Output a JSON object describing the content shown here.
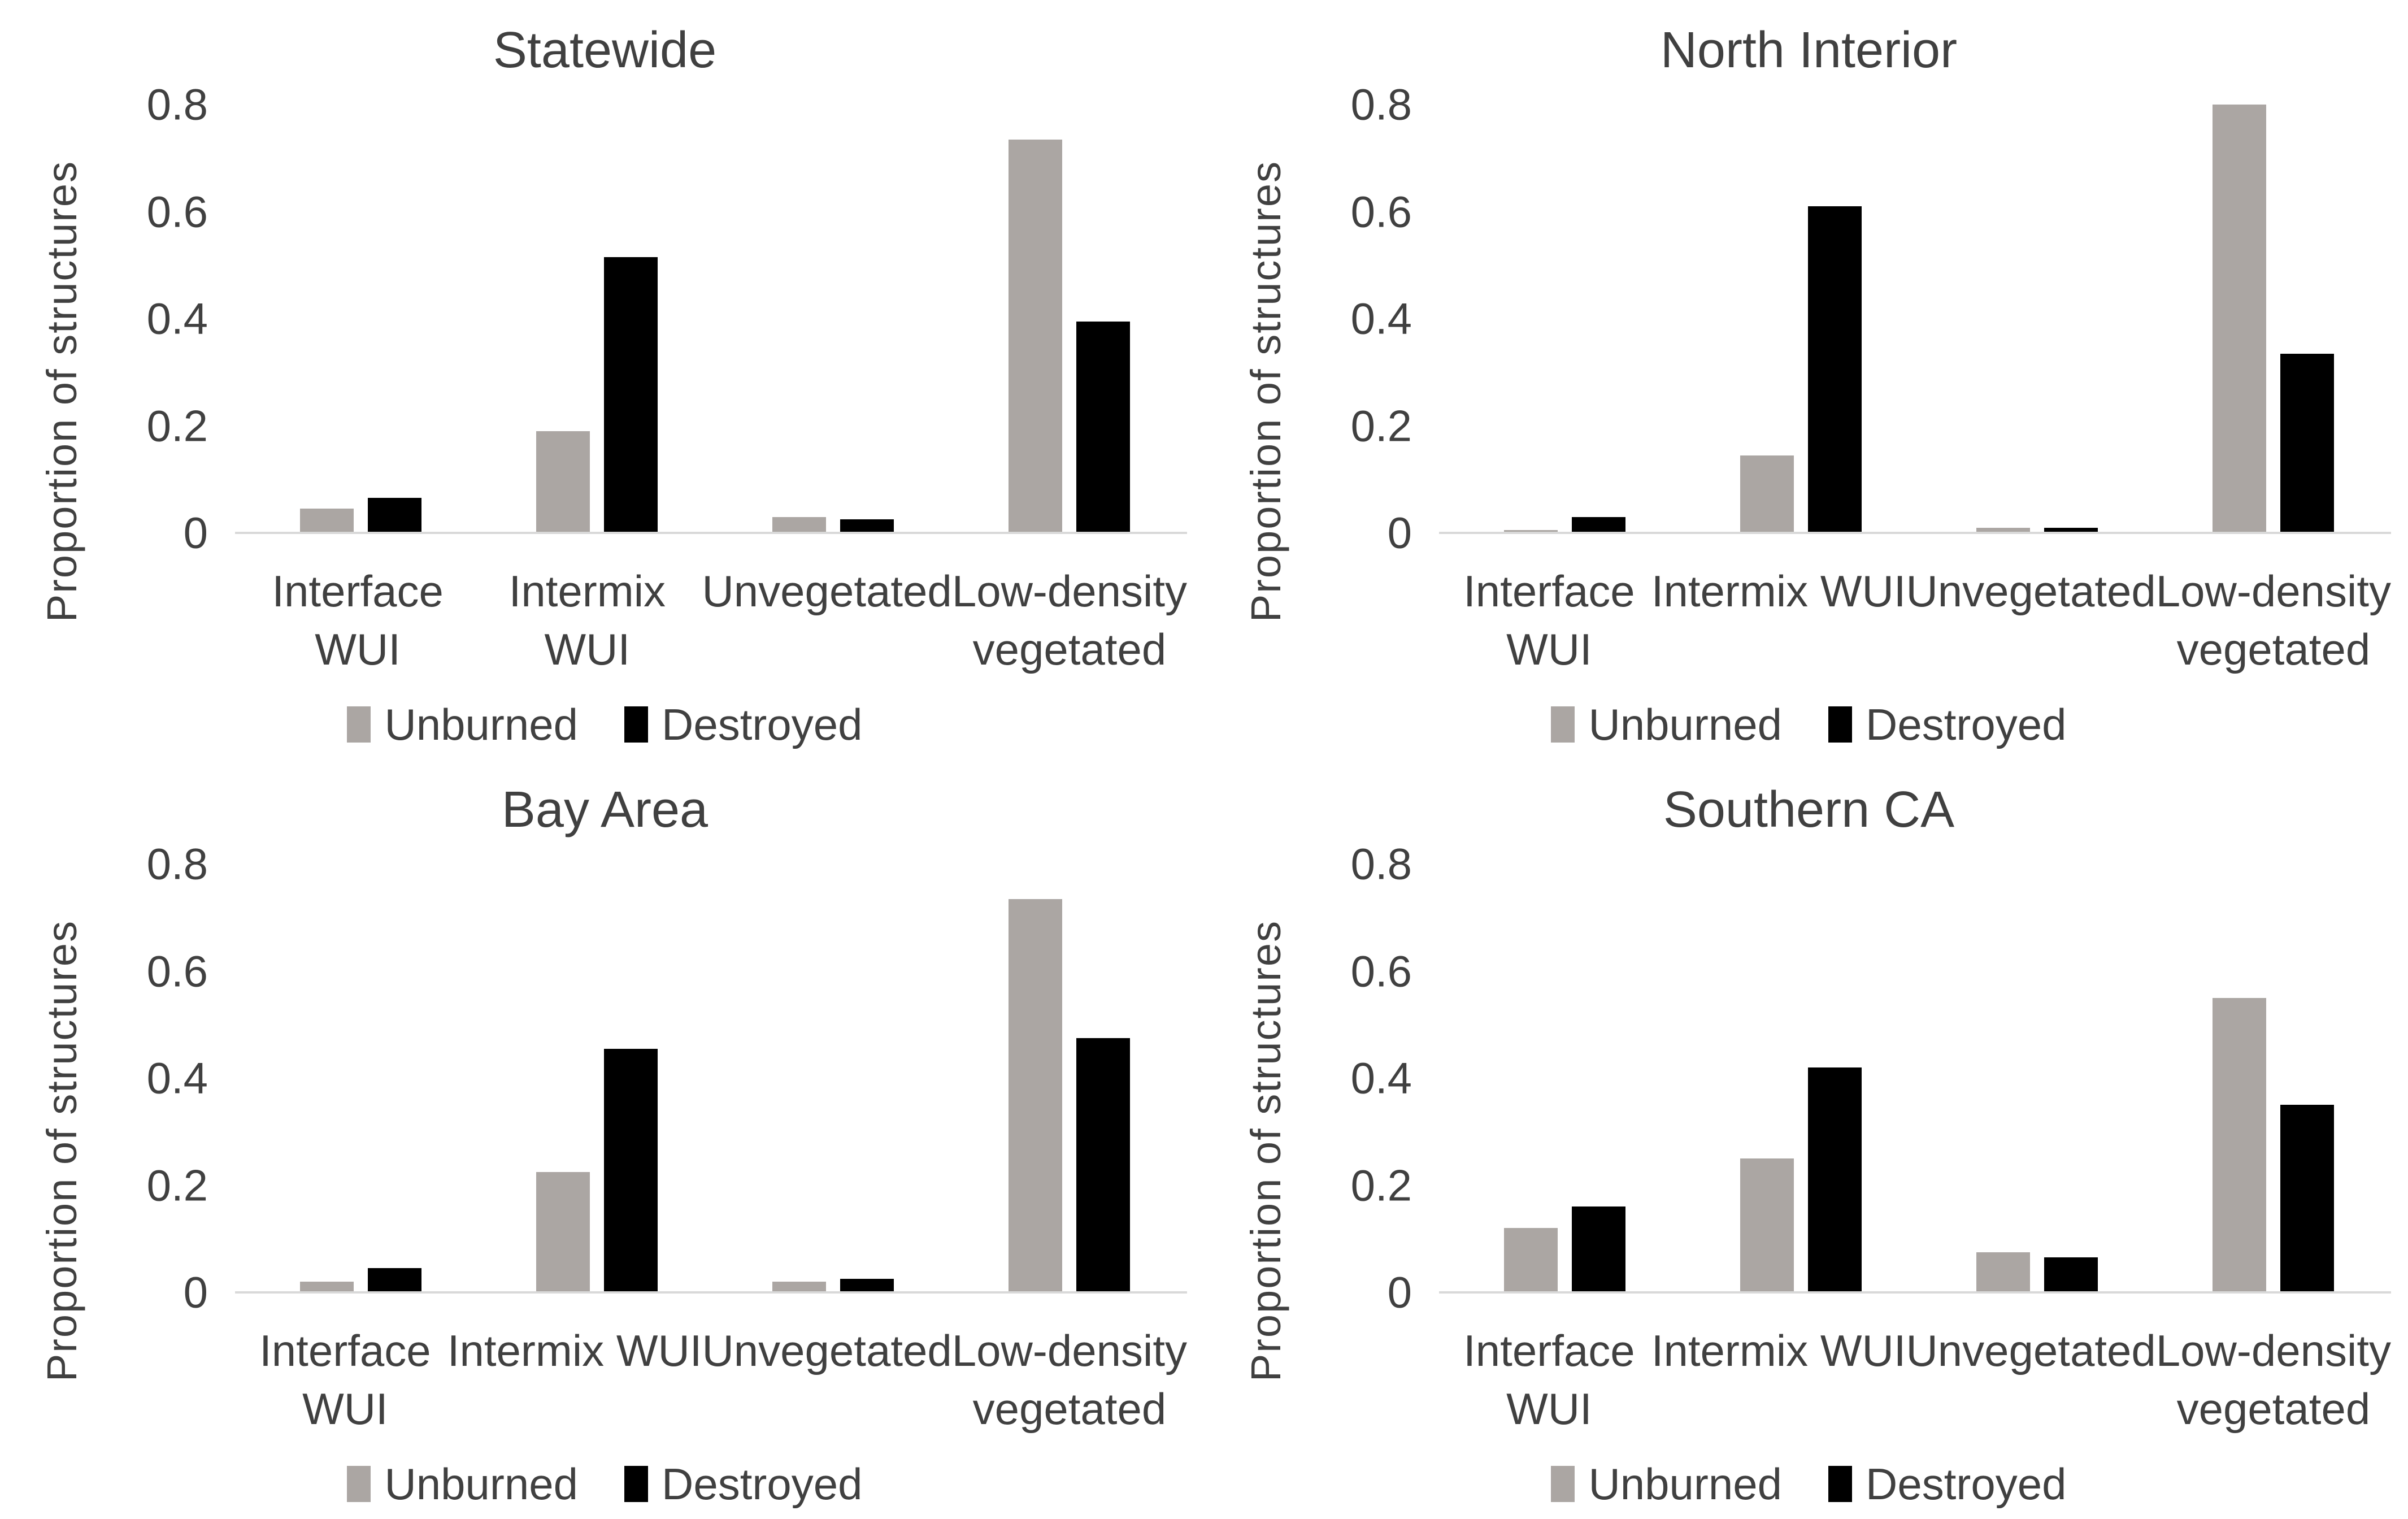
{
  "colors": {
    "unburned": "#aba6a3",
    "destroyed": "#000000",
    "text": "#404040",
    "axis_line": "#d9d9d9",
    "background": "#ffffff"
  },
  "y_axis": {
    "label": "Proportion of structures",
    "tick_labels": [
      "0.8",
      "0.6",
      "0.4",
      "0.2",
      "0"
    ]
  },
  "legend": {
    "items": [
      {
        "label": "Unburned",
        "color_key": "unburned"
      },
      {
        "label": "Destroyed",
        "color_key": "destroyed"
      }
    ]
  },
  "chart_data": [
    {
      "type": "bar",
      "title": "Statewide",
      "ylabel": "Proportion of structures",
      "xlabel": "",
      "ylim": [
        0,
        0.8
      ],
      "yticks": [
        0.8,
        0.6,
        0.4,
        0.2,
        0
      ],
      "grid": false,
      "legend_position": "bottom",
      "categories": [
        "Interface WUI",
        "Intermix WUI",
        "Unvegetated",
        "Low-density vegetated"
      ],
      "category_label_lines": [
        [
          "Interface",
          "WUI"
        ],
        [
          "Intermix",
          "WUI"
        ],
        [
          "Unvegetated"
        ],
        [
          "Low-density",
          "vegetated"
        ]
      ],
      "series": [
        {
          "name": "Unburned",
          "values": [
            0.045,
            0.19,
            0.03,
            0.735
          ]
        },
        {
          "name": "Destroyed",
          "values": [
            0.065,
            0.515,
            0.025,
            0.395
          ]
        }
      ]
    },
    {
      "type": "bar",
      "title": "North Interior",
      "ylabel": "Proportion of structures",
      "xlabel": "",
      "ylim": [
        0,
        0.8
      ],
      "yticks": [
        0.8,
        0.6,
        0.4,
        0.2,
        0
      ],
      "grid": false,
      "legend_position": "bottom",
      "categories": [
        "Interface WUI",
        "Intermix WUI",
        "Unvegetated",
        "Low-density vegetated"
      ],
      "category_label_lines": [
        [
          "Interface",
          "WUI"
        ],
        [
          "Intermix WUI"
        ],
        [
          "Unvegetated"
        ],
        [
          "Low-density",
          "vegetated"
        ]
      ],
      "series": [
        {
          "name": "Unburned",
          "values": [
            0.005,
            0.145,
            0.01,
            0.8
          ]
        },
        {
          "name": "Destroyed",
          "values": [
            0.03,
            0.61,
            0.01,
            0.335
          ]
        }
      ]
    },
    {
      "type": "bar",
      "title": "Bay Area",
      "ylabel": "Proportion of structures",
      "xlabel": "",
      "ylim": [
        0,
        0.8
      ],
      "yticks": [
        0.8,
        0.6,
        0.4,
        0.2,
        0
      ],
      "grid": false,
      "legend_position": "bottom",
      "categories": [
        "Interface WUI",
        "Intermix WUI",
        "Unvegetated",
        "Low-density vegetated"
      ],
      "category_label_lines": [
        [
          "Interface",
          "WUI"
        ],
        [
          "Intermix WUI"
        ],
        [
          "Unvegetated"
        ],
        [
          "Low-density",
          "vegetated"
        ]
      ],
      "series": [
        {
          "name": "Unburned",
          "values": [
            0.02,
            0.225,
            0.02,
            0.735
          ]
        },
        {
          "name": "Destroyed",
          "values": [
            0.045,
            0.455,
            0.025,
            0.475
          ]
        }
      ]
    },
    {
      "type": "bar",
      "title": "Southern CA",
      "ylabel": "Proportion of structures",
      "xlabel": "",
      "ylim": [
        0,
        0.8
      ],
      "yticks": [
        0.8,
        0.6,
        0.4,
        0.2,
        0
      ],
      "grid": false,
      "legend_position": "bottom",
      "categories": [
        "Interface WUI",
        "Intermix WUI",
        "Unvegetated",
        "Low-density vegetated"
      ],
      "category_label_lines": [
        [
          "Interface",
          "WUI"
        ],
        [
          "Intermix WUI"
        ],
        [
          "Unvegetated"
        ],
        [
          "Low-density",
          "vegetated"
        ]
      ],
      "series": [
        {
          "name": "Unburned",
          "values": [
            0.12,
            0.25,
            0.075,
            0.55
          ]
        },
        {
          "name": "Destroyed",
          "values": [
            0.16,
            0.42,
            0.065,
            0.35
          ]
        }
      ]
    }
  ]
}
